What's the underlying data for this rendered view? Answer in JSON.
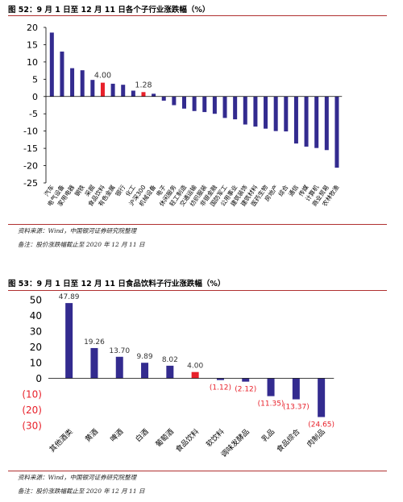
{
  "colors": {
    "bar": "#332b8f",
    "highlight": "#e8202a",
    "negative_label": "#e8202a",
    "rule": "#b03030"
  },
  "fig52": {
    "title": "图 52：9 月 1 日至 12 月 11 日各个子行业涨跌幅（%）",
    "source": "资料来源：Wind，中国银河证券研究院整理",
    "remark": "备注：股价涨跌幅截止至 2020 年 12 月 11 日"
  },
  "fig53": {
    "title": "图 53：9 月 1 日至 12 月 11 日食品饮料子行业涨跌幅（%）",
    "source": "资料来源：Wind，中国银河证券研究院整理",
    "remark": "备注：股价涨跌幅截止至 2020 年 12 月 11 日"
  },
  "chart_data": [
    {
      "type": "bar",
      "ylim": [
        -25,
        20
      ],
      "yticks": [
        "20",
        "15",
        "10",
        "5",
        "0",
        "-5",
        "-10",
        "-15",
        "-20",
        "-25"
      ],
      "ytick_values": [
        20,
        15,
        10,
        5,
        0,
        -5,
        -10,
        -15,
        -20,
        -25
      ],
      "categories": [
        "汽车",
        "电气设备",
        "家用电器",
        "钢铁",
        "采掘",
        "食品饮料",
        "有色金属",
        "银行",
        "化工",
        "沪深300",
        "机械设备",
        "电子",
        "休闲服务",
        "轻工制造",
        "交通运输",
        "纺织服装",
        "非银金融",
        "国防军工",
        "公用事业",
        "建筑装饰",
        "建筑材料",
        "医药生物",
        "房地产",
        "综合",
        "通信",
        "传媒",
        "计算机",
        "商业贸易",
        "农林牧渔"
      ],
      "values": [
        18.5,
        13.0,
        8.2,
        7.6,
        4.8,
        4.0,
        3.7,
        3.4,
        1.7,
        1.28,
        0.8,
        -1.2,
        -2.5,
        -3.5,
        -4.2,
        -4.5,
        -5.0,
        -6.2,
        -6.6,
        -8.1,
        -8.7,
        -9.3,
        -10.0,
        -10.1,
        -13.6,
        -14.5,
        -14.9,
        -15.5,
        -20.6
      ],
      "highlight": [
        "食品饮料",
        "沪深300"
      ],
      "data_labels": [
        {
          "category": "食品饮料",
          "text": "4.00"
        },
        {
          "category": "沪深300",
          "text": "1.28"
        }
      ]
    },
    {
      "type": "bar",
      "ylim": [
        -30,
        50
      ],
      "yticks": [
        "50",
        "40",
        "30",
        "20",
        "10",
        "0",
        "(10)",
        "(20)",
        "(30)"
      ],
      "ytick_values": [
        50,
        40,
        30,
        20,
        10,
        0,
        -10,
        -20,
        -30
      ],
      "categories": [
        "其他酒类",
        "黄酒",
        "啤酒",
        "白酒",
        "葡萄酒",
        "食品饮料",
        "软饮料",
        "调味发酵品",
        "乳品",
        "食品综合",
        "肉制品"
      ],
      "values": [
        47.89,
        19.26,
        13.7,
        9.89,
        8.02,
        4.0,
        -1.12,
        -2.12,
        -11.35,
        -13.37,
        -24.65
      ],
      "data_labels": [
        "47.89",
        "19.26",
        "13.70",
        "9.89",
        "8.02",
        "4.00",
        "(1.12)",
        "(2.12)",
        "(11.35)",
        "(13.37)",
        "(24.65)"
      ],
      "highlight": [
        "食品饮料"
      ]
    }
  ]
}
